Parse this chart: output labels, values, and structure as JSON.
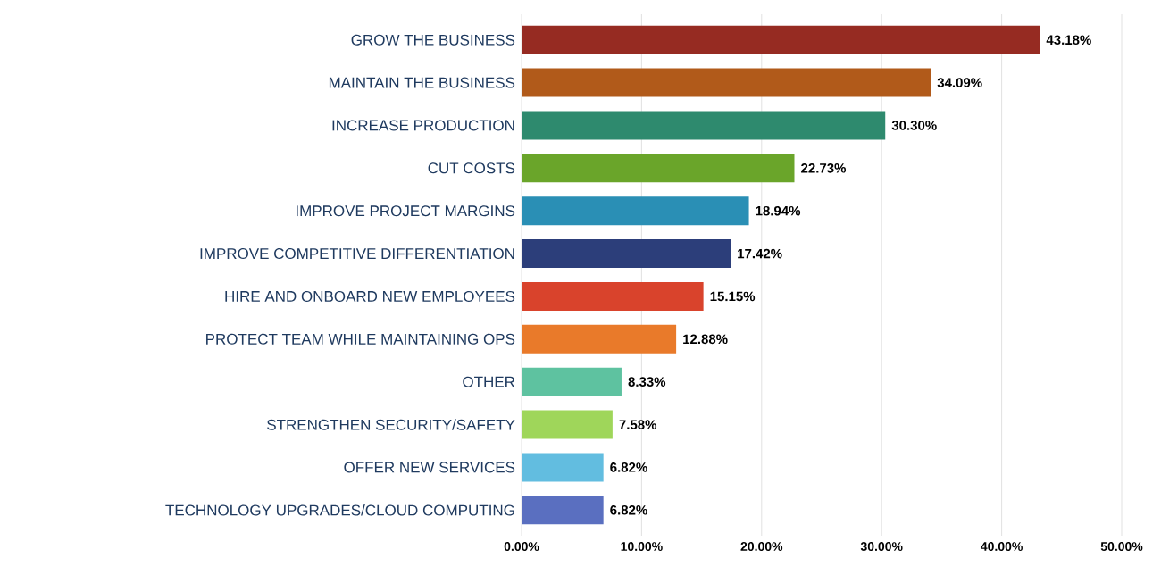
{
  "chart_data": {
    "type": "bar",
    "orientation": "horizontal",
    "categories": [
      "GROW THE BUSINESS",
      "MAINTAIN THE BUSINESS",
      "INCREASE PRODUCTION",
      "CUT COSTS",
      "IMPROVE PROJECT MARGINS",
      "IMPROVE COMPETITIVE DIFFERENTIATION",
      "HIRE AND ONBOARD NEW EMPLOYEES",
      "PROTECT TEAM WHILE MAINTAINING OPS",
      "OTHER",
      "STRENGTHEN SECURITY/SAFETY",
      "OFFER NEW SERVICES",
      "TECHNOLOGY UPGRADES/CLOUD COMPUTING"
    ],
    "values": [
      43.18,
      34.09,
      30.3,
      22.73,
      18.94,
      17.42,
      15.15,
      12.88,
      8.33,
      7.58,
      6.82,
      6.82
    ],
    "value_labels": [
      "43.18%",
      "34.09%",
      "30.30%",
      "22.73%",
      "18.94%",
      "17.42%",
      "15.15%",
      "12.88%",
      "8.33%",
      "7.58%",
      "6.82%",
      "6.82%"
    ],
    "colors": [
      "#962b22",
      "#b15a1a",
      "#2e8a6e",
      "#6aa52a",
      "#2a8fb5",
      "#2c3e7a",
      "#d9432c",
      "#e97a2a",
      "#5ec2a0",
      "#9fd65a",
      "#62bde0",
      "#5a6fc0"
    ],
    "xlim": [
      0,
      50
    ],
    "xticks": [
      {
        "value": 0,
        "label": "0.00%"
      },
      {
        "value": 10,
        "label": "10.00%"
      },
      {
        "value": 20,
        "label": "20.00%"
      },
      {
        "value": 30,
        "label": "30.00%"
      },
      {
        "value": 40,
        "label": "40.00%"
      },
      {
        "value": 50,
        "label": "50.00%"
      }
    ],
    "grid": "x"
  }
}
